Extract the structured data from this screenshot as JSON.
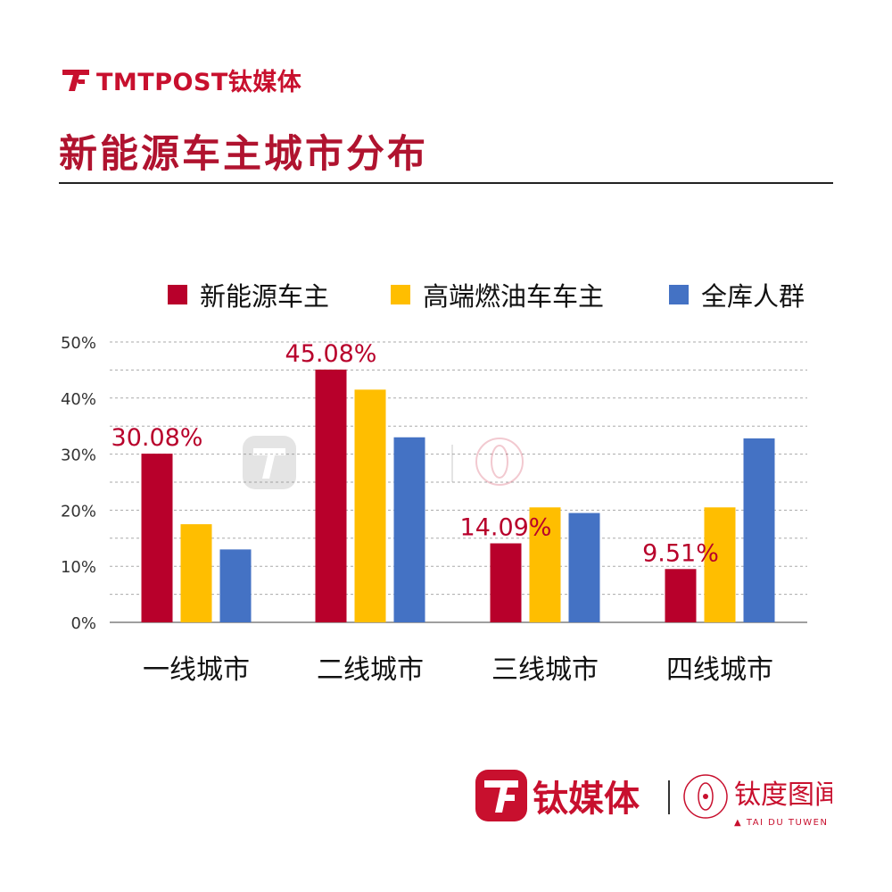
{
  "brand": {
    "top_name": "TMTPOST钛媒体",
    "bottom_name": "钛媒体",
    "sub_brand": "钛度图闻",
    "sub_brand_en": "▲ TAI DU TUWEN ▲",
    "brand_color": "#c8102e"
  },
  "chart_data": {
    "type": "bar",
    "title": "新能源车主城市分布",
    "categories": [
      "一线城市",
      "二线城市",
      "三线城市",
      "四线城市"
    ],
    "series": [
      {
        "name": "新能源车主",
        "color": "#b8002b",
        "values": [
          30.08,
          45.08,
          14.09,
          9.51
        ],
        "labels": [
          "30.08%",
          "45.08%",
          "14.09%",
          "9.51%"
        ]
      },
      {
        "name": "高端燃油车车主",
        "color": "#ffbe00",
        "values": [
          17.5,
          41.5,
          20.5,
          20.5
        ]
      },
      {
        "name": "全库人群",
        "color": "#4472c4",
        "values": [
          13.0,
          33.0,
          19.5,
          32.8
        ]
      }
    ],
    "yticks": [
      "0%",
      "10%",
      "20%",
      "30%",
      "40%",
      "50%"
    ],
    "ylim": [
      0,
      50
    ],
    "grid": true,
    "legend_position": "top",
    "label_color": "#b8002b"
  }
}
